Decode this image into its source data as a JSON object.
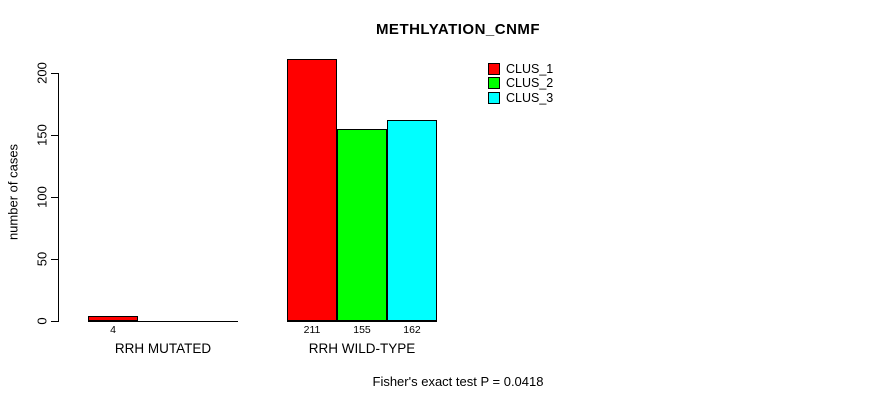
{
  "title": "METHLYATION_CNMF",
  "y_axis": {
    "label": "number of cases",
    "tick_labels": [
      "0",
      "50",
      "100",
      "150",
      "200"
    ]
  },
  "x_axis": {
    "categories": [
      "RRH MUTATED",
      "RRH WILD-TYPE"
    ]
  },
  "legend": {
    "items": [
      {
        "label": "CLUS_1",
        "color": "#ff0000"
      },
      {
        "label": "CLUS_2",
        "color": "#00ff00"
      },
      {
        "label": "CLUS_3",
        "color": "#00ffff"
      }
    ]
  },
  "footer": {
    "text": "Fisher's exact test P = 0.0418"
  },
  "chart_data": {
    "type": "bar",
    "title": "METHLYATION_CNMF",
    "xlabel": "",
    "ylabel": "number of cases",
    "ylim": [
      0,
      200
    ],
    "yticks": [
      0,
      50,
      100,
      150,
      200
    ],
    "categories": [
      "RRH MUTATED",
      "RRH WILD-TYPE"
    ],
    "series": [
      {
        "name": "CLUS_1",
        "color": "#ff0000",
        "values": [
          4,
          211
        ]
      },
      {
        "name": "CLUS_2",
        "color": "#00ff00",
        "values": [
          0,
          155
        ]
      },
      {
        "name": "CLUS_3",
        "color": "#00ffff",
        "values": [
          0,
          162
        ]
      }
    ],
    "bar_value_labels": [
      [
        "4",
        "",
        ""
      ],
      [
        "211",
        "155",
        "162"
      ]
    ],
    "annotation": "Fisher's exact test P = 0.0418",
    "legend_position": "top-right",
    "grid": false,
    "bar_border_color": "#000000",
    "background": "#ffffff"
  }
}
